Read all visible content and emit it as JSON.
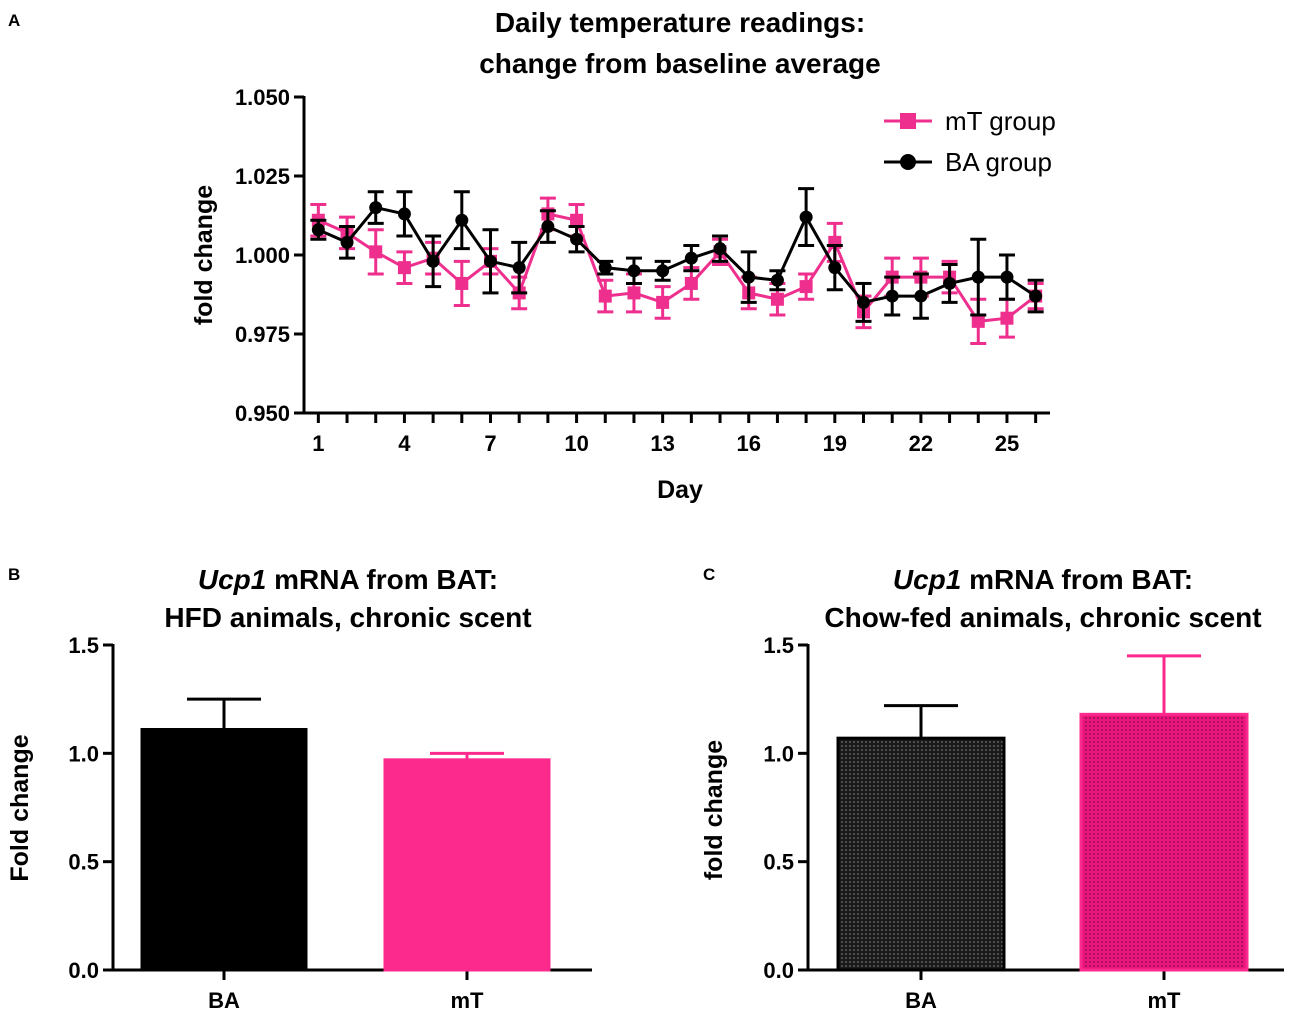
{
  "colors": {
    "mt": "#ee2f8d",
    "ba": "#000000",
    "mt_bar": "#fc2a8c",
    "ba_bar": "#000000"
  },
  "chart_data": [
    {
      "panel": "A",
      "type": "line",
      "title_line1": "Daily temperature readings:",
      "title_line2": "change from baseline average",
      "xlabel": "Day",
      "ylabel": "fold change",
      "xlim": [
        0.5,
        26.5
      ],
      "ylim": [
        0.95,
        1.05
      ],
      "yticks": [
        "0.950",
        "0.975",
        "1.000",
        "1.025",
        "1.050"
      ],
      "xticks": [
        "1",
        "4",
        "7",
        "10",
        "13",
        "16",
        "19",
        "22",
        "25"
      ],
      "legend_position": "top-right",
      "series": [
        {
          "name": "mT group",
          "marker": "square",
          "x": [
            1,
            2,
            3,
            4,
            5,
            6,
            7,
            8,
            9,
            10,
            11,
            12,
            13,
            14,
            15,
            16,
            17,
            18,
            19,
            20,
            21,
            22,
            23,
            24,
            25,
            26
          ],
          "y": [
            1.011,
            1.007,
            1.001,
            0.996,
            0.999,
            0.991,
            0.998,
            0.988,
            1.013,
            1.011,
            0.987,
            0.988,
            0.985,
            0.991,
            1.001,
            0.988,
            0.986,
            0.99,
            1.004,
            0.982,
            0.993,
            0.993,
            0.993,
            0.979,
            0.98,
            0.987
          ],
          "err": [
            0.005,
            0.005,
            0.007,
            0.005,
            0.005,
            0.007,
            0.004,
            0.005,
            0.005,
            0.005,
            0.005,
            0.006,
            0.005,
            0.005,
            0.004,
            0.005,
            0.005,
            0.004,
            0.006,
            0.005,
            0.006,
            0.006,
            0.005,
            0.007,
            0.006,
            0.004
          ]
        },
        {
          "name": "BA group",
          "marker": "circle",
          "x": [
            1,
            2,
            3,
            4,
            5,
            6,
            7,
            8,
            9,
            10,
            11,
            12,
            13,
            14,
            15,
            16,
            17,
            18,
            19,
            20,
            21,
            22,
            23,
            24,
            25,
            26
          ],
          "y": [
            1.008,
            1.004,
            1.015,
            1.013,
            0.998,
            1.011,
            0.998,
            0.996,
            1.009,
            1.005,
            0.996,
            0.995,
            0.995,
            0.999,
            1.002,
            0.993,
            0.992,
            1.012,
            0.996,
            0.985,
            0.987,
            0.987,
            0.991,
            0.993,
            0.993,
            0.987
          ],
          "err": [
            0.003,
            0.005,
            0.005,
            0.007,
            0.008,
            0.009,
            0.01,
            0.008,
            0.005,
            0.004,
            0.002,
            0.004,
            0.003,
            0.004,
            0.004,
            0.008,
            0.003,
            0.009,
            0.007,
            0.006,
            0.006,
            0.007,
            0.006,
            0.012,
            0.007,
            0.005
          ]
        }
      ]
    },
    {
      "panel": "B",
      "type": "bar",
      "title_italic": "Ucp1",
      "title_line1_rest": " mRNA from BAT:",
      "title_line2": "HFD animals, chronic scent",
      "xlabel": "",
      "ylabel": "Fold change",
      "ylim": [
        0.0,
        1.5
      ],
      "yticks": [
        "0.0",
        "0.5",
        "1.0",
        "1.5"
      ],
      "categories": [
        "BA",
        "mT"
      ],
      "values": [
        1.11,
        0.97
      ],
      "errors": [
        0.14,
        0.03
      ],
      "fill": [
        "solid",
        "solid"
      ]
    },
    {
      "panel": "C",
      "type": "bar",
      "title_italic": "Ucp1",
      "title_line1_rest": " mRNA from BAT:",
      "title_line2": "Chow-fed animals, chronic scent",
      "xlabel": "",
      "ylabel": "fold change",
      "ylim": [
        0.0,
        1.5
      ],
      "yticks": [
        "0.0",
        "0.5",
        "1.0",
        "1.5"
      ],
      "categories": [
        "BA",
        "mT"
      ],
      "values": [
        1.07,
        1.18
      ],
      "errors": [
        0.15,
        0.27
      ],
      "fill": [
        "dotted",
        "dotted"
      ]
    }
  ]
}
